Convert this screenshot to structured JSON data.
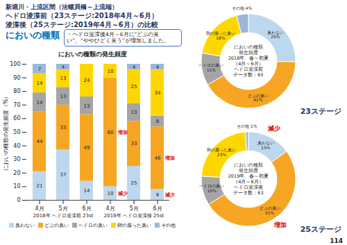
{
  "page": {
    "header": "新堀川・上流区間（法螺貝橋～上流端）",
    "title_lines": [
      "ヘドロ浚渫前（23ステージ:2018年4月～6月）",
      "浚渫後（25ステージ:2019年4月～6月）の比較"
    ],
    "subtitle": "においの種類",
    "callout": "・ヘドロ浚渫後4月～6月に“どぶの臭い”、“ややひどく臭う”が増加しました。",
    "page_number": "114"
  },
  "chart_data": [
    {
      "type": "bar",
      "title": "においの種類の発生頻度",
      "stacked": true,
      "data_labels": true,
      "grid": false,
      "legend": "bottom",
      "categories": [
        "4月",
        "5月",
        "6月",
        "4月",
        "5月",
        "6月"
      ],
      "group_labels": [
        "2018年 ヘドロ浚渫前 23st",
        "2019年 ヘドロ浚渫後 25st"
      ],
      "y_label": "においの種類の発生頻度（%）",
      "ylim": [
        0,
        100
      ],
      "yticks": [
        0,
        10,
        20,
        30,
        40,
        50,
        60,
        70,
        80,
        90,
        100
      ],
      "series": [
        {
          "name": "臭わない",
          "color": "#bdd7ee",
          "values": [
            21,
            37,
            14,
            10,
            25,
            8
          ]
        },
        {
          "name": "どぶの臭い",
          "color": "#f6a623",
          "values": [
            44,
            33,
            49,
            80,
            33,
            46
          ]
        },
        {
          "name": "ヘドロの臭い",
          "color": "#a5a5a5",
          "values": [
            14,
            13,
            13,
            0,
            13,
            8
          ]
        },
        {
          "name": "卵の腐った臭い",
          "color": "#ffd700",
          "values": [
            14,
            13,
            24,
            10,
            25,
            34
          ]
        },
        {
          "name": "その他",
          "color": "#9bb7d9",
          "values": [
            7,
            4,
            0,
            0,
            4,
            4
          ]
        }
      ],
      "annotations": [
        {
          "text": "増加",
          "series": "どぶの臭い",
          "category_index": 3
        },
        {
          "text": "減少",
          "series": "臭わない",
          "category_index": 3
        },
        {
          "text": "増加",
          "series": "どぶの臭い",
          "category_index": 5
        },
        {
          "text": "減少",
          "series": "臭わない",
          "category_index": 5
        }
      ]
    },
    {
      "type": "pie",
      "data_labels": true,
      "center_text": [
        "においの種類",
        "発生頻度",
        "2018年、春～初夏",
        "（4月～6月）",
        "ヘドロ浚渫前",
        "データ数：65"
      ],
      "stage_label": "23ステージ",
      "categories": [
        "臭わない",
        "どぶの臭い",
        "ヘドロの臭い",
        "卵の腐った臭い",
        "その他"
      ],
      "values": [
        25,
        41,
        11,
        18,
        4
      ],
      "value_labels": [
        "25%",
        "41%",
        "11%",
        "18%",
        "4%"
      ],
      "colors": [
        "#bdd7ee",
        "#f6a623",
        "#a5a5a5",
        "#ffd700",
        "#9bb7d9"
      ],
      "annotations": []
    },
    {
      "type": "pie",
      "data_labels": true,
      "center_text": [
        "においの種類",
        "発生頻度",
        "2019年、春～初夏",
        "（4月～6月）",
        "ヘドロ浚渫後",
        "データ数：63"
      ],
      "stage_label": "25ステージ",
      "categories": [
        "臭わない",
        "どぶの臭い",
        "ヘドロの臭い",
        "卵の腐った臭い",
        "その他"
      ],
      "values": [
        15,
        51,
        10,
        23,
        1
      ],
      "value_labels": [
        "15%",
        "51%",
        "10%",
        "23%",
        "1%"
      ],
      "colors": [
        "#bdd7ee",
        "#f6a623",
        "#a5a5a5",
        "#ffd700",
        "#9bb7d9"
      ],
      "annotations": [
        {
          "text": "減少",
          "category": "臭わない"
        },
        {
          "text": "増加",
          "category": "どぶの臭い"
        }
      ]
    }
  ]
}
